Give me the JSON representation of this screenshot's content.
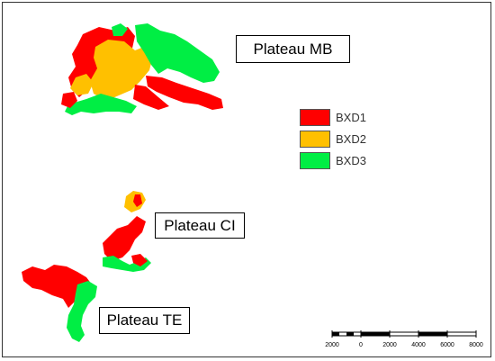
{
  "regions": {
    "mb": {
      "label": "Plateau MB"
    },
    "ci": {
      "label": "Plateau CI"
    },
    "te": {
      "label": "Plateau TE"
    }
  },
  "legend": {
    "items": [
      {
        "label": "BXD1",
        "color": "#ff0000"
      },
      {
        "label": "BXD2",
        "color": "#ffc000"
      },
      {
        "label": "BXD3",
        "color": "#00ee44"
      }
    ]
  },
  "scalebar": {
    "ticks": [
      "2000",
      "0",
      "2000",
      "4000",
      "6000",
      "8000"
    ]
  },
  "colors": {
    "red": "#ff0000",
    "orange": "#ffc000",
    "green": "#00ee44"
  }
}
